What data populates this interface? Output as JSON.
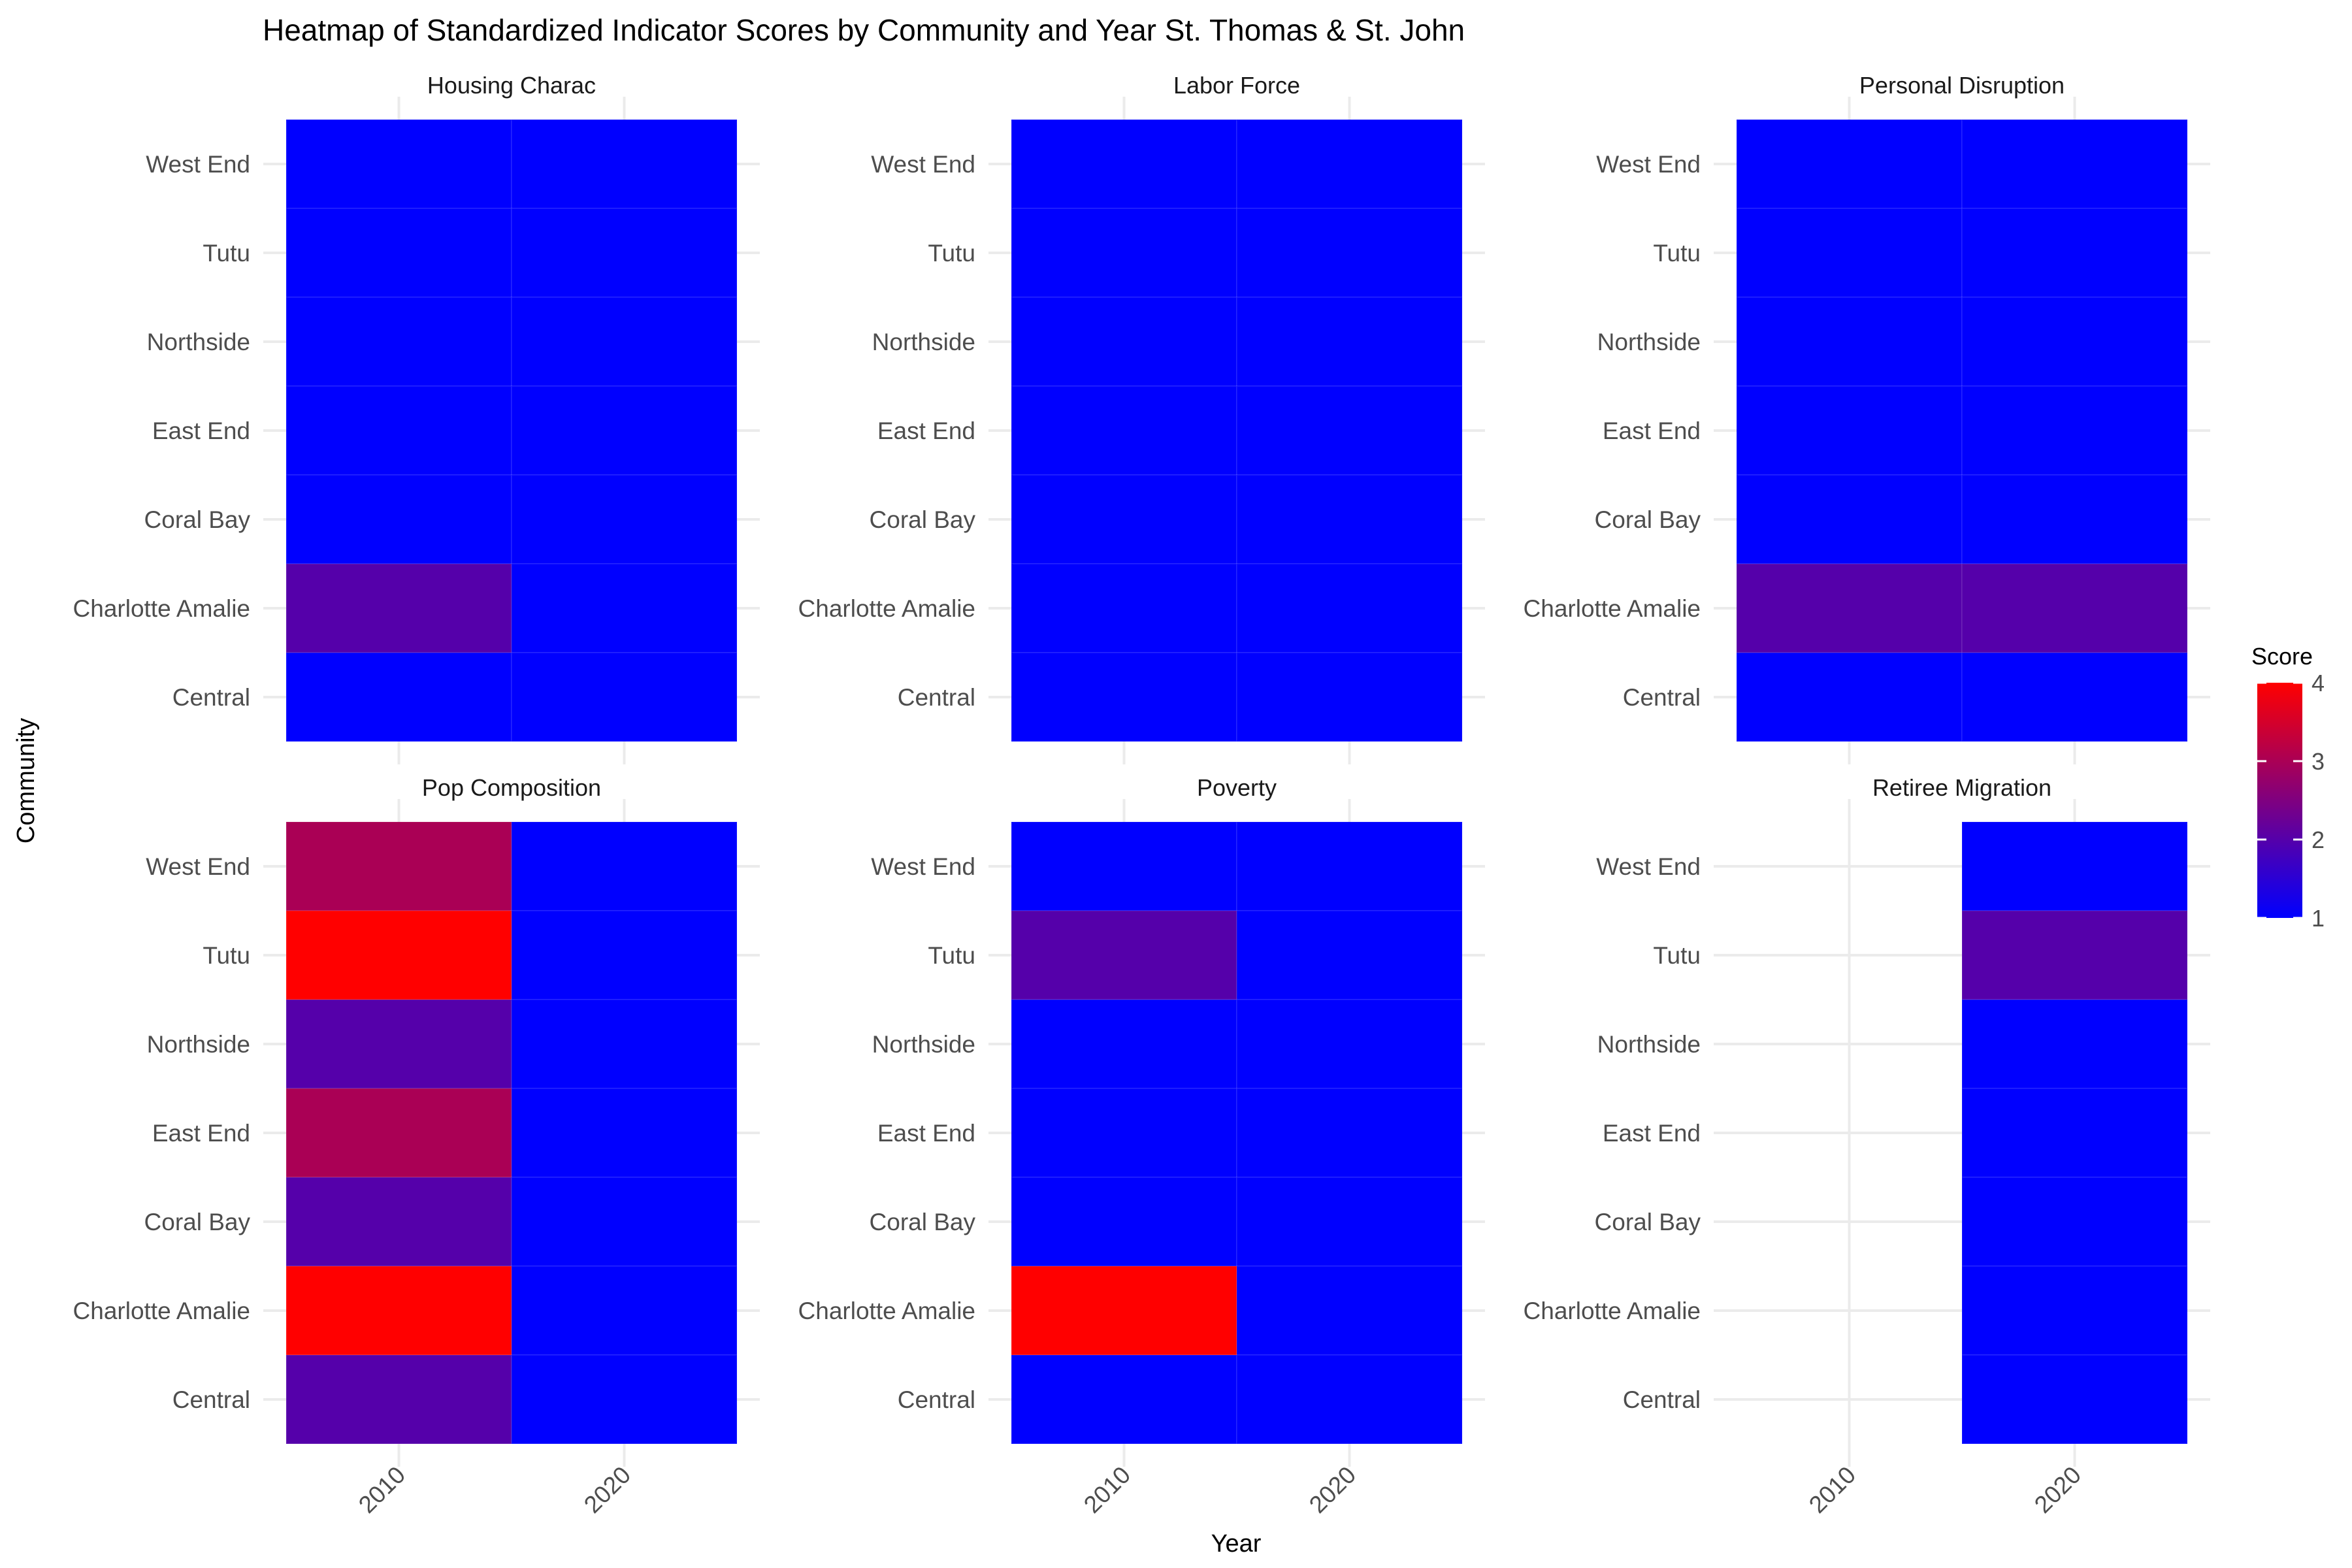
{
  "chart_data": {
    "type": "heatmap",
    "title": "Heatmap of Standardized Indicator Scores by Community and Year St. Thomas & St. John",
    "xlabel": "Year",
    "ylabel": "Community",
    "x_categories": [
      "2010",
      "2020"
    ],
    "y_categories": [
      "West End",
      "Tutu",
      "Northside",
      "East End",
      "Coral Bay",
      "Charlotte Amalie",
      "Central"
    ],
    "legend": {
      "title": "Score",
      "ticks": [
        "1",
        "2",
        "3",
        "4"
      ],
      "min": 1,
      "max": 4,
      "low_color": "#0000ff",
      "high_color": "#ff0000",
      "placement": "right"
    },
    "grid": true,
    "panels": [
      {
        "name": "Housing Charac",
        "values": [
          [
            1,
            1
          ],
          [
            1,
            1
          ],
          [
            1,
            1
          ],
          [
            1,
            1
          ],
          [
            1,
            1
          ],
          [
            2,
            1
          ],
          [
            1,
            1
          ]
        ]
      },
      {
        "name": "Labor Force",
        "values": [
          [
            1,
            1
          ],
          [
            1,
            1
          ],
          [
            1,
            1
          ],
          [
            1,
            1
          ],
          [
            1,
            1
          ],
          [
            1,
            1
          ],
          [
            1,
            1
          ]
        ]
      },
      {
        "name": "Personal Disruption",
        "values": [
          [
            1,
            1
          ],
          [
            1,
            1
          ],
          [
            1,
            1
          ],
          [
            1,
            1
          ],
          [
            1,
            1
          ],
          [
            2,
            2
          ],
          [
            1,
            1
          ]
        ]
      },
      {
        "name": "Pop Composition",
        "values": [
          [
            3,
            1
          ],
          [
            4,
            1
          ],
          [
            2,
            1
          ],
          [
            3,
            1
          ],
          [
            2,
            1
          ],
          [
            4,
            1
          ],
          [
            2,
            1
          ]
        ]
      },
      {
        "name": "Poverty",
        "values": [
          [
            1,
            1
          ],
          [
            2,
            1
          ],
          [
            1,
            1
          ],
          [
            1,
            1
          ],
          [
            1,
            1
          ],
          [
            4,
            1
          ],
          [
            1,
            1
          ]
        ]
      },
      {
        "name": "Retiree Migration",
        "values": [
          [
            null,
            1
          ],
          [
            null,
            2
          ],
          [
            null,
            1
          ],
          [
            null,
            1
          ],
          [
            null,
            1
          ],
          [
            null,
            1
          ],
          [
            null,
            1
          ]
        ]
      }
    ]
  }
}
